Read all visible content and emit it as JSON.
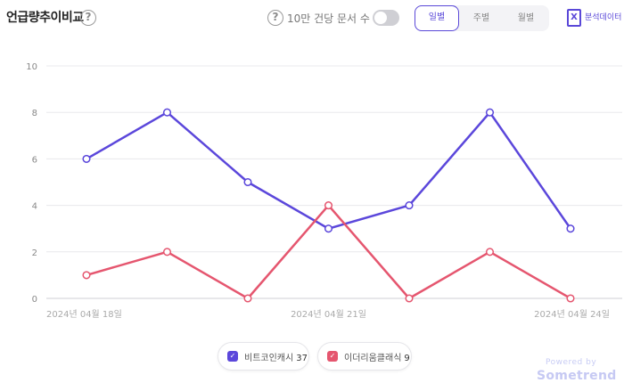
{
  "header": {
    "title": "언급량추이비교",
    "help_symbol": "?",
    "toggle_label": "10만 건당 문서 수",
    "periods": [
      "일별",
      "주별",
      "월별"
    ],
    "active_period": "일별",
    "export_icon_text": "X",
    "export_label": "분석데이터"
  },
  "colors": {
    "accent": "#5a48d8",
    "series_1": "#5b47db",
    "series_2": "#e5566f",
    "grid": "#e8e8ec"
  },
  "chart_data": {
    "type": "line",
    "x": [
      "2024-04-18",
      "2024-04-19",
      "2024-04-20",
      "2024-04-21",
      "2024-04-22",
      "2024-04-23",
      "2024-04-24"
    ],
    "x_tick_labels": [
      "2024년 04월 18일",
      "2024년 04월 21일",
      "2024년 04월 24일"
    ],
    "x_tick_index": [
      0,
      3,
      6
    ],
    "y_ticks": [
      0,
      2,
      4,
      6,
      8,
      10
    ],
    "ylim": [
      0,
      10
    ],
    "grid": true,
    "legend_position": "bottom-center",
    "series": [
      {
        "name": "비트코인캐시",
        "total": "37",
        "values": [
          6,
          8,
          5,
          3,
          4,
          8,
          3
        ]
      },
      {
        "name": "이더리움클래식",
        "total": "9",
        "values": [
          1,
          2,
          0,
          4,
          0,
          2,
          0
        ]
      }
    ]
  },
  "legend": {
    "check_symbol": "✓"
  },
  "footer": {
    "powered_by": "Powered by",
    "brand": "Sometrend"
  }
}
